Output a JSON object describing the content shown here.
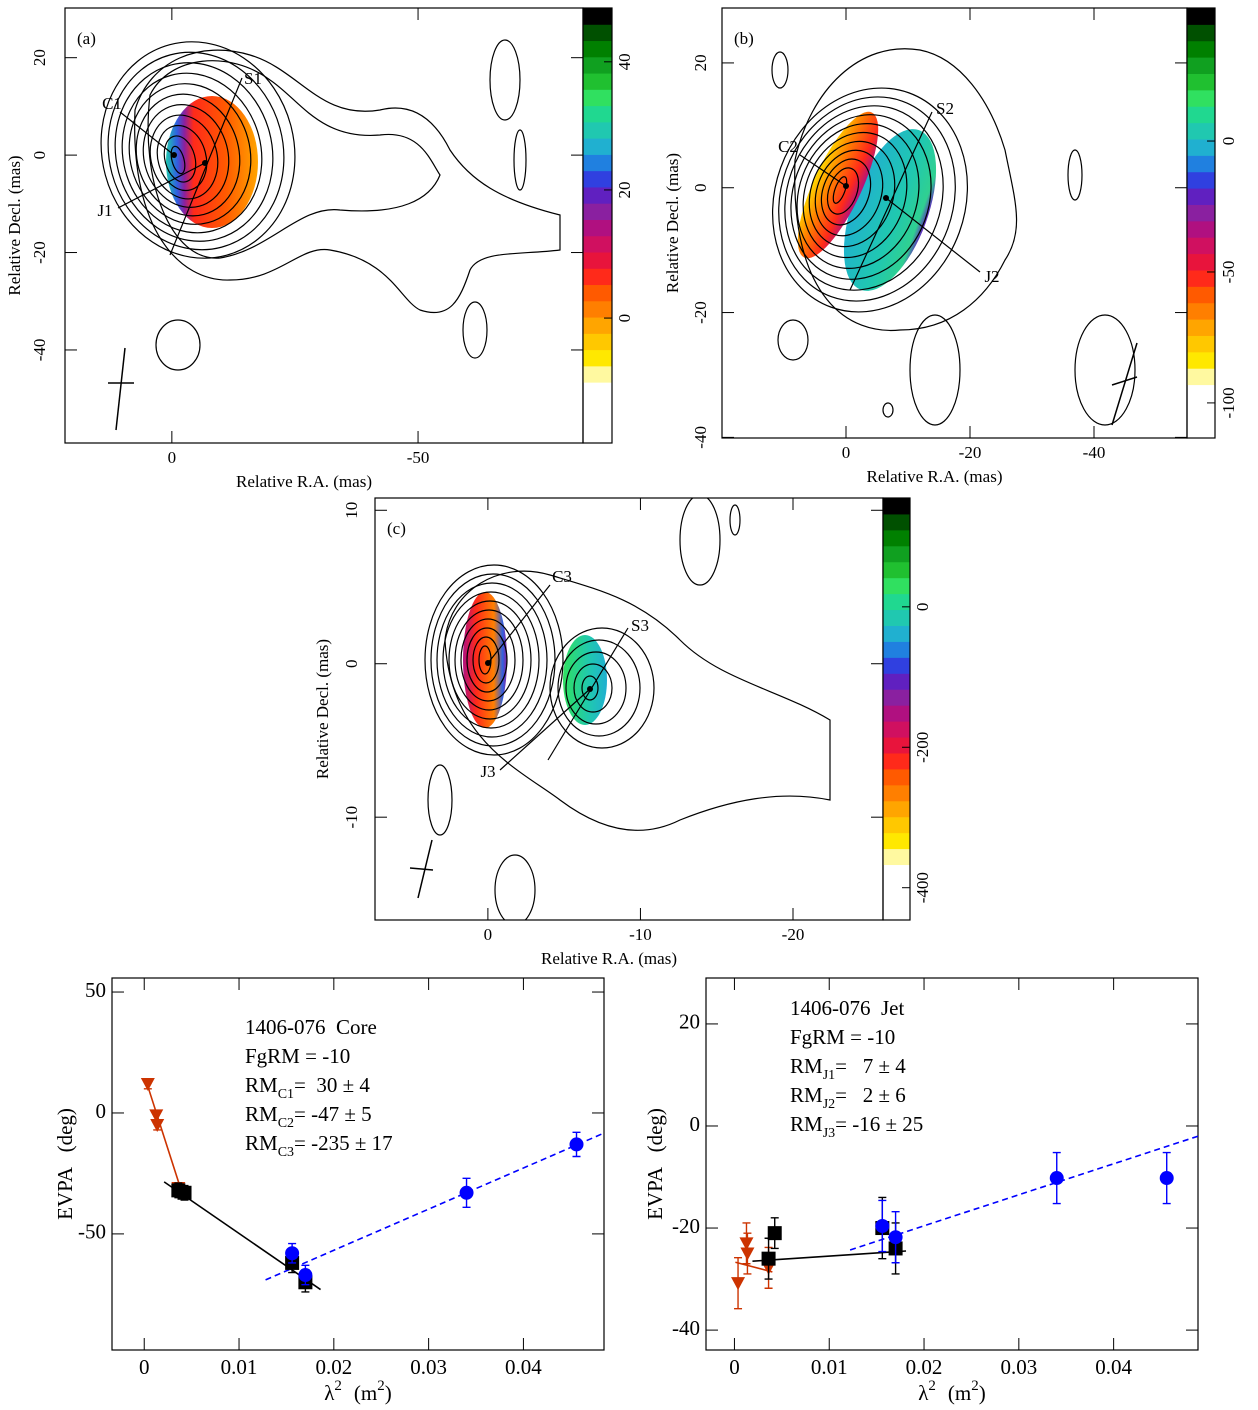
{
  "chart_data": [
    {
      "type": "map",
      "panel_label": "(a)",
      "xlabel": "Relative R.A. (mas)",
      "ylabel": "Relative Decl. (mas)",
      "xlim": [
        21.7,
        -83.5
      ],
      "xticks": [
        0,
        -50
      ],
      "ylim": [
        -59.1,
        30.2
      ],
      "yticks": [
        20,
        0,
        -20,
        -40
      ],
      "clim": [
        -19.5,
        48.4
      ],
      "cticks": [
        0,
        20,
        40
      ],
      "colormap_min": -10,
      "colormap": [
        "#fff9a0",
        "#ffe800",
        "#ffc800",
        "#ffa500",
        "#ff7f00",
        "#ff5a00",
        "#ff2a1a",
        "#e8143c",
        "#d01060",
        "#b01080",
        "#8a20a0",
        "#6020c0",
        "#3040e0",
        "#2080e0",
        "#20b0d0",
        "#20c8b0",
        "#20d890",
        "#30e060",
        "#20c030",
        "#10a020",
        "#008000",
        "#005000",
        "#000000"
      ],
      "annotations": [
        "C1",
        "S1",
        "J1"
      ]
    },
    {
      "type": "map",
      "panel_label": "(b)",
      "xlabel": "Relative R.A. (mas)",
      "ylabel": "Relative Decl. (mas)",
      "xlim": [
        20.0,
        -55.0
      ],
      "xticks": [
        0,
        -20,
        -40
      ],
      "ylim": [
        -40.1,
        28.8
      ],
      "yticks": [
        20,
        0,
        -20,
        -40
      ],
      "clim": [
        -113.4,
        50.8
      ],
      "cticks": [
        -100,
        -50,
        0
      ],
      "colormap_min": -93,
      "colormap": [
        "#fff9a0",
        "#ffe800",
        "#ffc800",
        "#ffa500",
        "#ff7f00",
        "#ff5a00",
        "#ff2a1a",
        "#e8143c",
        "#d01060",
        "#b01080",
        "#8a20a0",
        "#6020c0",
        "#3040e0",
        "#2080e0",
        "#20b0d0",
        "#20c8b0",
        "#20d890",
        "#30e060",
        "#20c030",
        "#10a020",
        "#008000",
        "#005000",
        "#000000"
      ],
      "annotations": [
        "C2",
        "S2",
        "J2"
      ]
    },
    {
      "type": "map",
      "panel_label": "(c)",
      "xlabel": "Relative R.A. (mas)",
      "ylabel": "Relative Decl. (mas)",
      "xlim": [
        7.4,
        -25.9
      ],
      "xticks": [
        0,
        -10,
        -20
      ],
      "ylim": [
        -16.7,
        10.8
      ],
      "yticks": [
        10,
        0,
        -10
      ],
      "clim": [
        -446,
        155
      ],
      "cticks": [
        -400,
        -200,
        0
      ],
      "colormap_min": -367,
      "colormap": [
        "#fff9a0",
        "#ffe800",
        "#ffc800",
        "#ffa500",
        "#ff7f00",
        "#ff5a00",
        "#ff2a1a",
        "#e8143c",
        "#d01060",
        "#b01080",
        "#8a20a0",
        "#6020c0",
        "#3040e0",
        "#2080e0",
        "#20b0d0",
        "#20c8b0",
        "#20d890",
        "#30e060",
        "#20c030",
        "#10a020",
        "#008000",
        "#005000",
        "#000000"
      ],
      "annotations": [
        "C3",
        "S3",
        "J3"
      ]
    },
    {
      "type": "scatter",
      "ylabel": "EVPA   (deg)",
      "xlabel": [
        "λ",
        "2",
        "(m",
        "2",
        ")"
      ],
      "xlim": [
        -0.0034,
        0.0485
      ],
      "xticks": [
        0,
        0.01,
        0.02,
        0.03,
        0.04
      ],
      "ylim": [
        -98,
        55.8
      ],
      "yticks": [
        50,
        0,
        -50
      ],
      "annotations": [
        {
          "text": "1406-076  Core"
        },
        {
          "text": "FgRM = -10"
        },
        {
          "text": "RM",
          "sub": "C1",
          "rest": "=  30 ± 4"
        },
        {
          "text": "RM",
          "sub": "C2",
          "rest": "= -47 ± 5"
        },
        {
          "text": "RM",
          "sub": "C3",
          "rest": "= -235 ± 17"
        }
      ],
      "series": [
        {
          "marker": "triangle",
          "color": "#cc3300",
          "x": [
            0.00038,
            0.00127,
            0.00137,
            0.0036
          ],
          "values": [
            12,
            -1,
            -5,
            -31
          ],
          "errors": [
            2,
            2,
            2,
            2
          ]
        },
        {
          "marker": "square",
          "color": "#000000",
          "x": [
            0.0036,
            0.00425,
            0.0156,
            0.017
          ],
          "values": [
            -32,
            -33,
            -62,
            -70
          ],
          "errors": [
            3,
            3,
            4,
            4
          ]
        },
        {
          "marker": "circle",
          "color": "#0000ff",
          "x": [
            0.0156,
            0.017,
            0.034,
            0.0456
          ],
          "values": [
            -58,
            -67,
            -33,
            -13
          ],
          "errors": [
            4,
            4,
            6,
            5
          ]
        }
      ],
      "fits": [
        {
          "color": "#cc3300",
          "dash": false,
          "x": [
            0.0003,
            0.0039
          ],
          "values": [
            12,
            -32
          ]
        },
        {
          "color": "#000000",
          "dash": false,
          "x": [
            0.0021,
            0.0186
          ],
          "values": [
            -28.5,
            -73
          ]
        },
        {
          "color": "#0000ff",
          "dash": true,
          "x": [
            0.0128,
            0.0485
          ],
          "values": [
            -69,
            -8.3
          ]
        }
      ]
    },
    {
      "type": "scatter",
      "ylabel": "EVPA   (deg)",
      "xlabel": [
        "λ",
        "2",
        "(m",
        "2",
        ")"
      ],
      "xlim": [
        -0.003,
        0.0489
      ],
      "xticks": [
        0,
        0.01,
        0.02,
        0.03,
        0.04
      ],
      "ylim": [
        -43.9,
        29.0
      ],
      "yticks": [
        20,
        0,
        -20,
        -40
      ],
      "annotations": [
        {
          "text": "1406-076  Jet"
        },
        {
          "text": "FgRM = -10"
        },
        {
          "text": "RM",
          "sub": "J1",
          "rest": "=   7 ± 4"
        },
        {
          "text": "RM",
          "sub": "J2",
          "rest": "=   2 ± 6"
        },
        {
          "text": "RM",
          "sub": "J3",
          "rest": "= -16 ± 25"
        }
      ],
      "series": [
        {
          "marker": "triangle",
          "color": "#cc3300",
          "x": [
            0.00038,
            0.00127,
            0.00137,
            0.0036
          ],
          "values": [
            -30.8,
            -23,
            -25,
            -27.8
          ],
          "errors": [
            5,
            4,
            4,
            4
          ]
        },
        {
          "marker": "square",
          "color": "#000000",
          "x": [
            0.0036,
            0.00425,
            0.0156,
            0.017
          ],
          "values": [
            -26,
            -21,
            -20,
            -24
          ],
          "errors": [
            4,
            3,
            6,
            5
          ]
        },
        {
          "marker": "circle",
          "color": "#0000ff",
          "x": [
            0.0156,
            0.017,
            0.034,
            0.0456
          ],
          "values": [
            -19.6,
            -21.8,
            -10.2,
            -10.2
          ],
          "errors": [
            5,
            5,
            5,
            5
          ]
        }
      ],
      "fits": [
        {
          "color": "#cc3300",
          "dash": false,
          "x": [
            0.0001,
            0.004
          ],
          "values": [
            -26.7,
            -28.6
          ]
        },
        {
          "color": "#000000",
          "dash": false,
          "x": [
            0.0019,
            0.0181
          ],
          "values": [
            -26.5,
            -24.5
          ]
        },
        {
          "color": "#0000ff",
          "dash": true,
          "x": [
            0.0122,
            0.0489
          ],
          "values": [
            -24.3,
            -2
          ]
        }
      ]
    }
  ]
}
